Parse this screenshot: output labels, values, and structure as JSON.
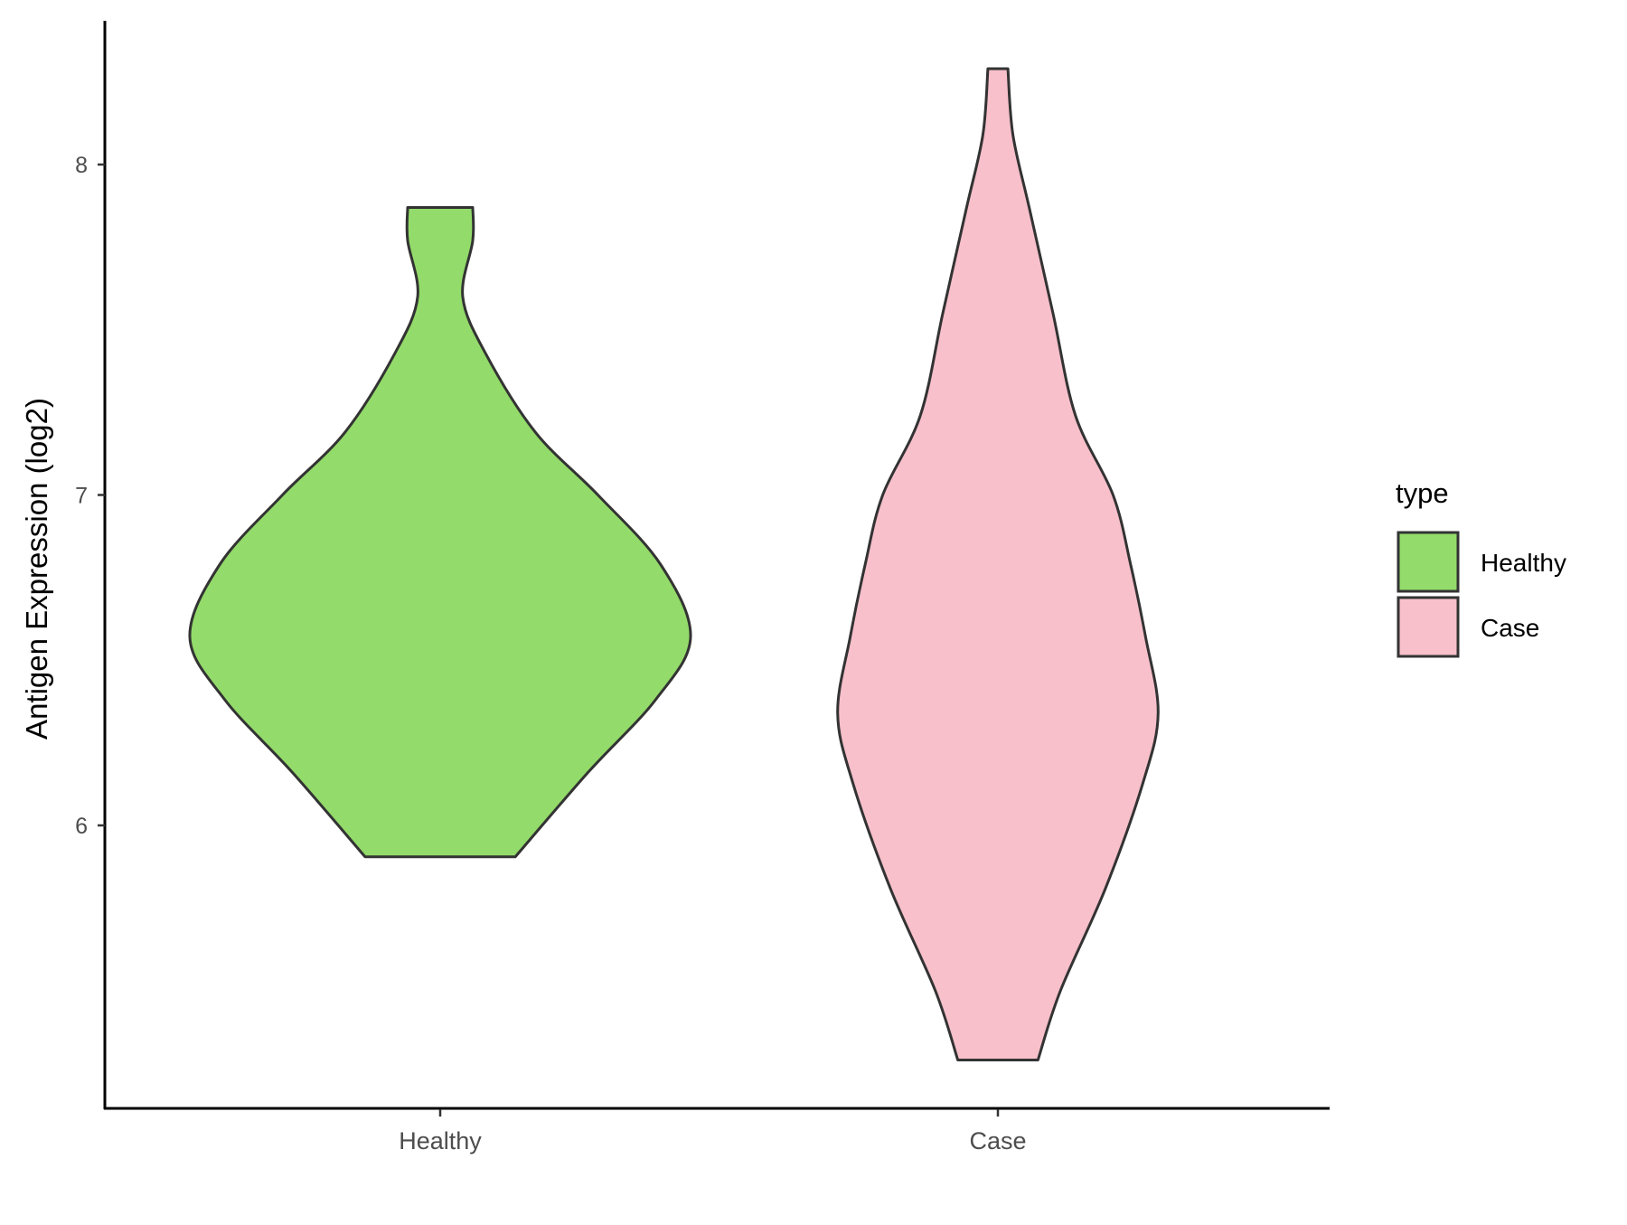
{
  "chart_data": {
    "type": "violin",
    "title": "",
    "xlabel": "",
    "ylabel": "Antigen Expression (log2)",
    "categories": [
      "Healthy",
      "Case"
    ],
    "yticks": [
      6,
      7,
      8
    ],
    "ylim": [
      5.15,
      8.45
    ],
    "grid": false,
    "legend": {
      "title": "type",
      "position": "right",
      "entries": [
        "Healthy",
        "Case"
      ]
    },
    "series": [
      {
        "name": "Healthy",
        "color": "#93DB6A",
        "min": 5.905,
        "max": 7.87,
        "profile": [
          [
            7.87,
            0.13
          ],
          [
            7.77,
            0.13
          ],
          [
            7.6,
            0.09
          ],
          [
            7.43,
            0.18
          ],
          [
            7.19,
            0.38
          ],
          [
            7.0,
            0.63
          ],
          [
            6.79,
            0.88
          ],
          [
            6.57,
            1.0
          ],
          [
            6.38,
            0.86
          ],
          [
            6.16,
            0.59
          ],
          [
            5.905,
            0.3
          ]
        ]
      },
      {
        "name": "Case",
        "color": "#F7C0CB",
        "min": 5.29,
        "max": 8.29,
        "profile": [
          [
            8.29,
            0.04
          ],
          [
            8.09,
            0.06
          ],
          [
            7.87,
            0.125
          ],
          [
            7.55,
            0.22
          ],
          [
            7.24,
            0.31
          ],
          [
            7.0,
            0.46
          ],
          [
            6.79,
            0.53
          ],
          [
            6.57,
            0.59
          ],
          [
            6.34,
            0.64
          ],
          [
            6.13,
            0.58
          ],
          [
            5.81,
            0.43
          ],
          [
            5.5,
            0.25
          ],
          [
            5.29,
            0.16
          ]
        ]
      }
    ],
    "outline_color": "#333333"
  }
}
